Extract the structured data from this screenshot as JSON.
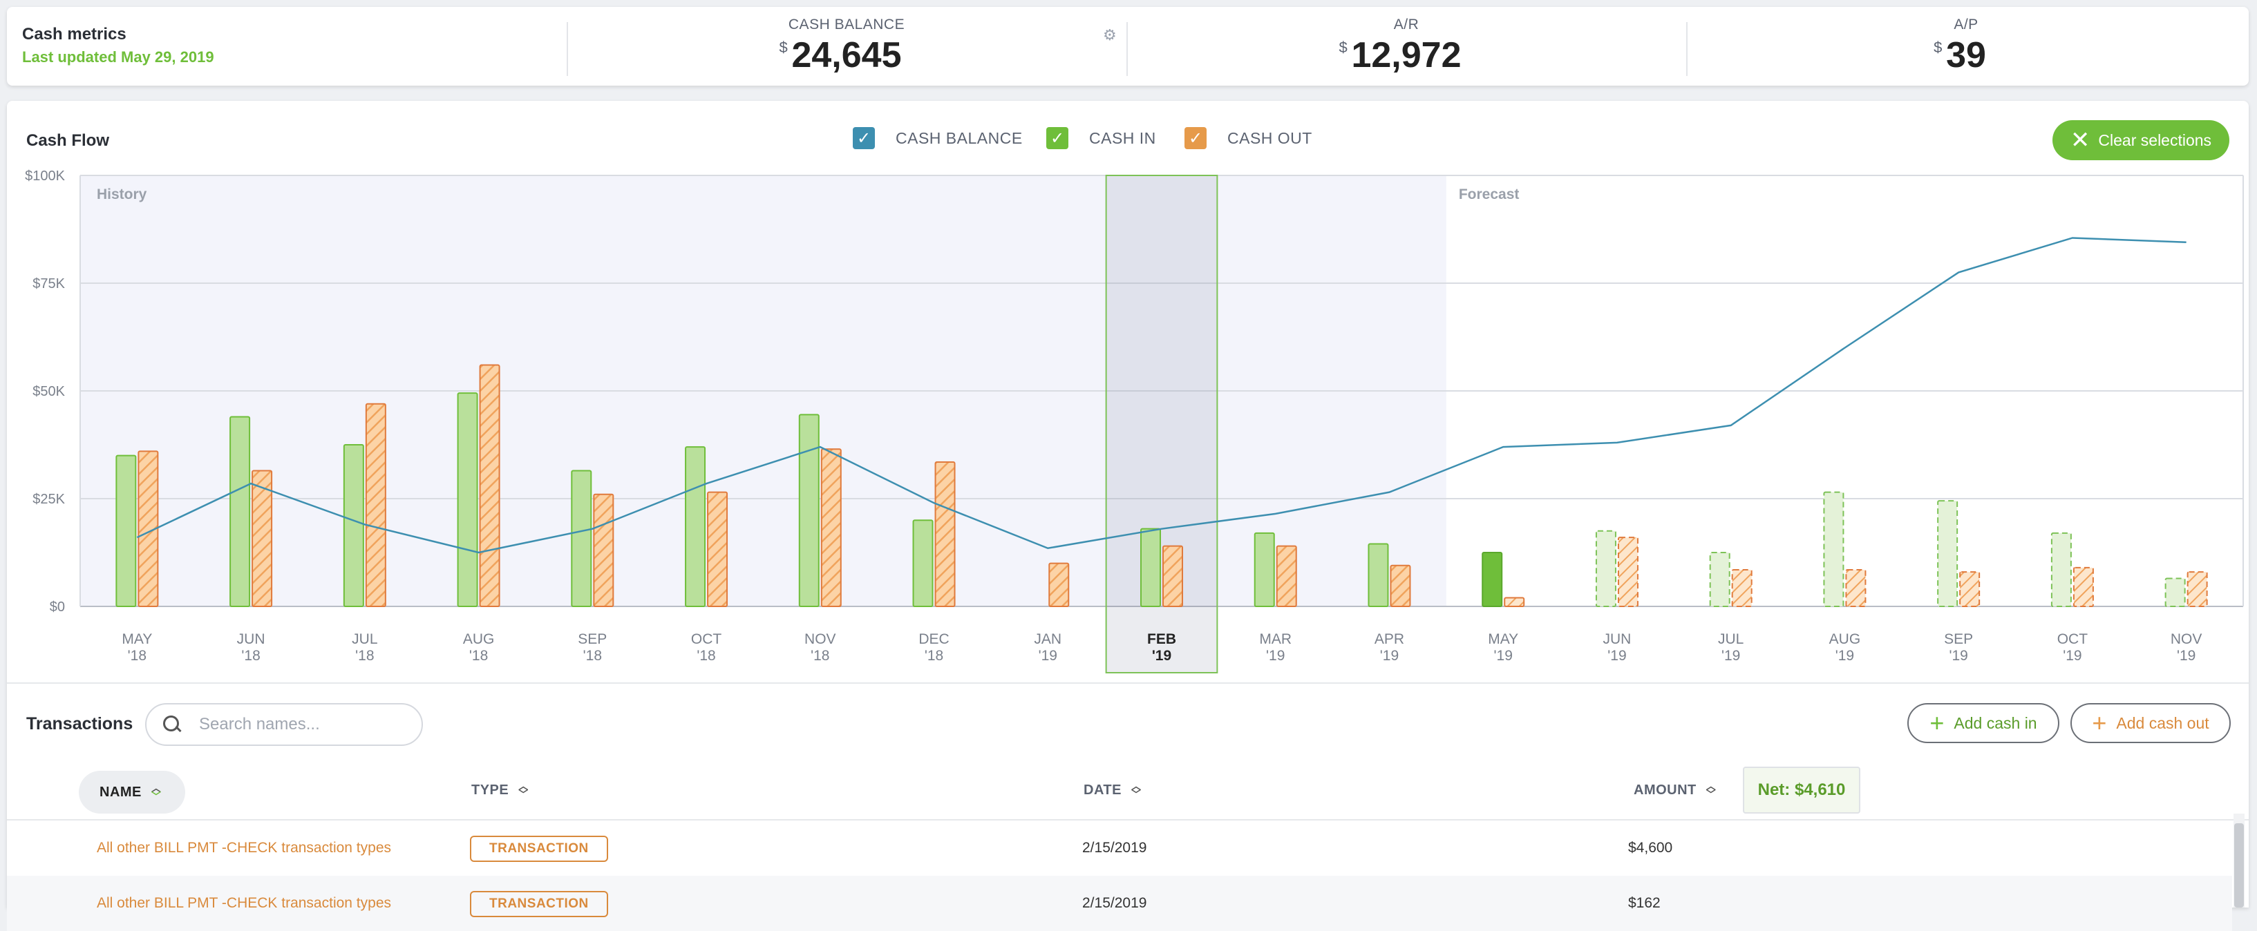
{
  "metrics": {
    "title": "Cash metrics",
    "updated": "Last updated May 29, 2019",
    "cash_balance": {
      "label": "CASH BALANCE",
      "currency": "$",
      "value": "24,645"
    },
    "ar": {
      "label": "A/R",
      "currency": "$",
      "value": "12,972"
    },
    "ap": {
      "label": "A/P",
      "currency": "$",
      "value": "39"
    },
    "gear_icon": "gear-icon"
  },
  "cashflow": {
    "title": "Cash Flow",
    "legend": [
      {
        "label": "CASH BALANCE",
        "color": "#3d8fb0",
        "checked": true
      },
      {
        "label": "CASH IN",
        "color": "#6fbe3a",
        "checked": true
      },
      {
        "label": "CASH OUT",
        "color": "#e69a4a",
        "checked": true
      }
    ],
    "clear_label": "Clear selections"
  },
  "chart_data": {
    "type": "bar",
    "categories": [
      "MAY '18",
      "JUN '18",
      "JUL '18",
      "AUG '18",
      "SEP '18",
      "OCT '18",
      "NOV '18",
      "DEC '18",
      "JAN '19",
      "FEB '19",
      "MAR '19",
      "APR '19",
      "MAY '19",
      "JUN '19",
      "JUL '19",
      "AUG '19",
      "SEP '19",
      "OCT '19",
      "NOV '19"
    ],
    "tick_month": [
      "MAY",
      "JUN",
      "JUL",
      "AUG",
      "SEP",
      "OCT",
      "NOV",
      "DEC",
      "JAN",
      "FEB",
      "MAR",
      "APR",
      "MAY",
      "JUN",
      "JUL",
      "AUG",
      "SEP",
      "OCT",
      "NOV"
    ],
    "tick_year": [
      "'18",
      "'18",
      "'18",
      "'18",
      "'18",
      "'18",
      "'18",
      "'18",
      "'19",
      "'19",
      "'19",
      "'19",
      "'19",
      "'19",
      "'19",
      "'19",
      "'19",
      "'19",
      "'19"
    ],
    "series": [
      {
        "name": "CASH IN",
        "values": [
          35000,
          44000,
          37500,
          49500,
          31500,
          37000,
          44500,
          20000,
          0,
          18000,
          17000,
          14500,
          12500,
          17500,
          12500,
          26500,
          24500,
          17000,
          6500
        ]
      },
      {
        "name": "CASH OUT",
        "values": [
          36000,
          31500,
          47000,
          56000,
          26000,
          26500,
          36500,
          33500,
          10000,
          14000,
          14000,
          9500,
          2000,
          16000,
          8500,
          8500,
          8000,
          9000,
          8000
        ]
      },
      {
        "name": "CASH BALANCE",
        "values": [
          16000,
          28500,
          19000,
          12500,
          18000,
          28500,
          37000,
          24000,
          13500,
          18000,
          21500,
          26500,
          37000,
          38000,
          42000,
          60000,
          77500,
          85500,
          84500
        ]
      }
    ],
    "y_ticks": [
      "$0",
      "$25K",
      "$50K",
      "$75K",
      "$100K"
    ],
    "ylim": [
      0,
      100000
    ],
    "regions": {
      "history": "History",
      "forecast": "Forecast",
      "forecast_start_index": 12
    },
    "selected_index": 9,
    "partial_index": 12
  },
  "transactions": {
    "title": "Transactions",
    "search_placeholder": "Search names...",
    "add_in": "Add cash in",
    "add_out": "Add cash out",
    "columns": {
      "name": "NAME",
      "type": "TYPE",
      "date": "DATE",
      "amount": "AMOUNT"
    },
    "net": "Net: $4,610",
    "rows": [
      {
        "name": "All other BILL PMT -CHECK transaction types",
        "type": "TRANSACTION",
        "date": "2/15/2019",
        "amount": "$4,600"
      },
      {
        "name": "All other BILL PMT -CHECK transaction types",
        "type": "TRANSACTION",
        "date": "2/15/2019",
        "amount": "$162"
      }
    ]
  }
}
